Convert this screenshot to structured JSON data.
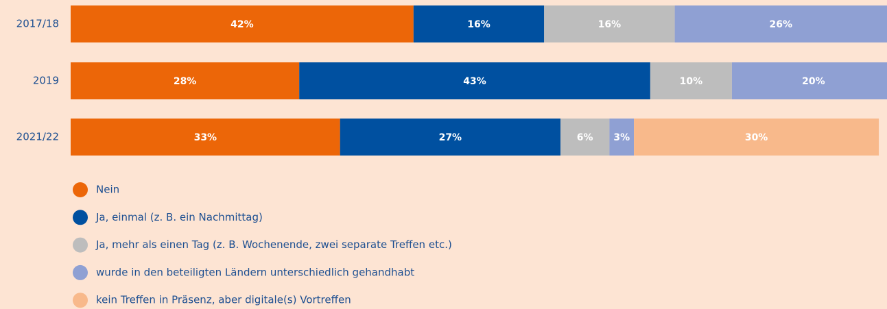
{
  "chart_data": {
    "type": "stacked_barh",
    "categories": [
      "2017/18",
      "2019",
      "2021/22"
    ],
    "xlim": [
      0,
      100
    ],
    "series": [
      {
        "name": "Nein",
        "color": "#ec6608",
        "values": [
          42,
          28,
          33
        ],
        "value_labels": [
          "42%",
          "28%",
          "33%"
        ]
      },
      {
        "name": "Ja, einmal (z. B. ein Nachmittag)",
        "color": "#0050a0",
        "values": [
          16,
          43,
          27
        ],
        "value_labels": [
          "16%",
          "43%",
          "27%"
        ]
      },
      {
        "name": "Ja, mehr als einen Tag (z. B. Wochenende, zwei separate Treffen etc.)",
        "color": "#bdbdbd",
        "values": [
          16,
          10,
          6
        ],
        "value_labels": [
          "16%",
          "10%",
          "6%"
        ]
      },
      {
        "name": "wurde in den beteiligten Ländern unterschiedlich gehandhabt",
        "color": "#8fa0d3",
        "values": [
          26,
          20,
          3
        ],
        "value_labels": [
          "26%",
          "20%",
          "3%"
        ]
      },
      {
        "name": "kein Treffen in Präsenz, aber digitale(s) Vortreffen",
        "color": "#f8b98b",
        "values": [
          null,
          null,
          30
        ],
        "value_labels": [
          null,
          null,
          "30%"
        ]
      }
    ]
  }
}
